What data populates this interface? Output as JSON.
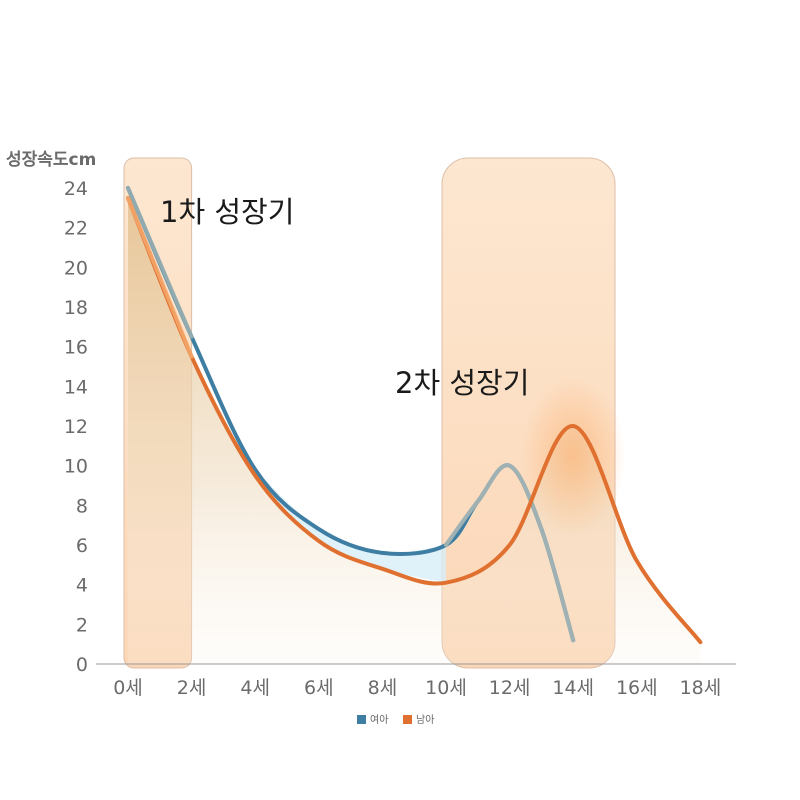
{
  "chart_data": {
    "type": "line",
    "ylabel": "성장속도cm",
    "xlabel": "",
    "ylim": [
      0,
      24
    ],
    "yticks": [
      "0",
      "2",
      "4",
      "6",
      "8",
      "10",
      "12",
      "14",
      "16",
      "18",
      "20",
      "22",
      "24"
    ],
    "x_categories": [
      "0세",
      "2세",
      "4세",
      "6세",
      "8세",
      "10세",
      "12세",
      "14세",
      "16세",
      "18세"
    ],
    "series": [
      {
        "name": "여아",
        "color": "#3f7ea3",
        "points": [
          [
            0,
            24
          ],
          [
            2,
            16.5
          ],
          [
            4,
            9.8
          ],
          [
            6,
            6.8
          ],
          [
            8,
            5.6
          ],
          [
            10,
            6.0
          ],
          [
            11,
            8.2
          ],
          [
            12,
            10.0
          ],
          [
            13,
            6.8
          ],
          [
            14,
            1.2
          ]
        ]
      },
      {
        "name": "남아",
        "color": "#e0702f",
        "points": [
          [
            0,
            23.5
          ],
          [
            2,
            15.5
          ],
          [
            4,
            9.5
          ],
          [
            6,
            6.2
          ],
          [
            8,
            4.8
          ],
          [
            10,
            4.1
          ],
          [
            12,
            6.0
          ],
          [
            14,
            12.0
          ],
          [
            16,
            5.2
          ],
          [
            18,
            1.1
          ]
        ]
      }
    ],
    "annotations": [
      {
        "label": "1차 성장기",
        "x_range": [
          0,
          2
        ]
      },
      {
        "label": "2차 성장기",
        "x_range": [
          10,
          15
        ]
      }
    ],
    "legend": {
      "position": "bottom",
      "entries": [
        "여아",
        "남아"
      ]
    }
  }
}
